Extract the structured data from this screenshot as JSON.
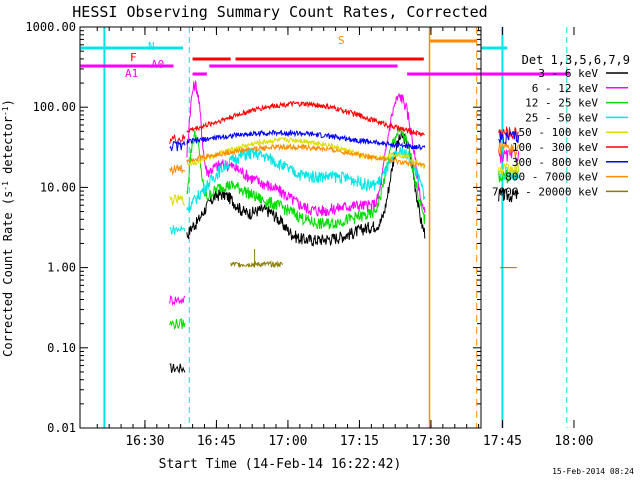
{
  "chart_data": {
    "type": "line",
    "title": "HESSI Observing Summary Count Rates, Corrected",
    "xlabel": "Start Time (14-Feb-14 16:22:42)",
    "ylabel_main": "Corrected Count Rate (s",
    "ylabel_sup1": "-1",
    "ylabel_mid": " detector",
    "ylabel_sup2": "-1",
    "ylabel_end": ")",
    "yscale": "log",
    "ylim": [
      0.01,
      1000
    ],
    "xlim_minutes": [
      16.38,
      100.5
    ],
    "x_ticks": [
      {
        "label": "16:30",
        "minute": 30
      },
      {
        "label": "16:45",
        "minute": 45
      },
      {
        "label": "17:00",
        "minute": 60
      },
      {
        "label": "17:15",
        "minute": 75
      },
      {
        "label": "17:30",
        "minute": 90
      },
      {
        "label": "17:45",
        "minute": 105
      },
      {
        "label": "18:00",
        "minute": 120
      }
    ],
    "y_ticks": [
      {
        "label": "1000.00",
        "value": 1000
      },
      {
        "label": "100.00",
        "value": 100
      },
      {
        "label": "10.00",
        "value": 10
      },
      {
        "label": "1.00",
        "value": 1
      },
      {
        "label": "0.10",
        "value": 0.1
      },
      {
        "label": "0.01",
        "value": 0.01
      }
    ],
    "legend_title": "Det 1,3,5,6,7,9",
    "legend_position": "right",
    "series": [
      {
        "name": "3 - 6 keV",
        "color": "#000000"
      },
      {
        "name": "6 - 12 keV",
        "color": "#ff00ff"
      },
      {
        "name": "12 - 25 keV",
        "color": "#00dd00"
      },
      {
        "name": "25 - 50 keV",
        "color": "#00e5e5"
      },
      {
        "name": "50 - 100 keV",
        "color": "#dddd00"
      },
      {
        "name": "100 - 300 keV",
        "color": "#ff0000"
      },
      {
        "name": "300 - 800 keV",
        "color": "#0000ff"
      },
      {
        "name": "800 - 7000 keV",
        "color": "#ff8c00"
      },
      {
        "name": "7000 - 20000 keV",
        "color": "#8b7d00"
      }
    ],
    "flag_labels": {
      "N": "N",
      "F": "F",
      "S": "S",
      "A1": "A1",
      "A0": "A0"
    },
    "footer": "15-Feb-2014 08:24"
  }
}
